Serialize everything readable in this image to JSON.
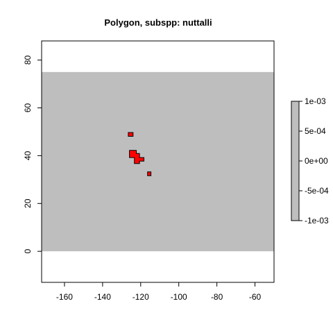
{
  "title": "Polygon, subspp: nuttalli",
  "map": {
    "x_range": [
      -172,
      -50
    ],
    "y_range": [
      -13,
      88
    ],
    "x_ticks": [
      -160,
      -140,
      -120,
      -100,
      -80,
      -60
    ],
    "y_ticks": [
      0,
      20,
      40,
      60,
      80
    ],
    "raster_extent": {
      "x": [
        -172,
        -50
      ],
      "y": [
        0,
        75
      ]
    },
    "raster_color": "#bebebe",
    "polygon_fill": "#ff0000",
    "polygon_stroke": "#000000",
    "polygons": [
      [
        [
          -126.5,
          48.1
        ],
        [
          -124.0,
          48.1
        ],
        [
          -124.0,
          49.7
        ],
        [
          -126.5,
          49.7
        ]
      ],
      [
        [
          -125.9,
          39.2
        ],
        [
          -123.3,
          39.2
        ],
        [
          -123.3,
          36.7
        ],
        [
          -120.6,
          36.7
        ],
        [
          -120.6,
          37.7
        ],
        [
          -118.3,
          37.7
        ],
        [
          -118.3,
          39.2
        ],
        [
          -120.6,
          39.2
        ],
        [
          -120.6,
          40.9
        ],
        [
          -122.3,
          40.9
        ],
        [
          -122.3,
          42.2
        ],
        [
          -125.9,
          42.2
        ]
      ],
      [
        [
          -116.4,
          31.6
        ],
        [
          -114.6,
          31.6
        ],
        [
          -114.6,
          33.2
        ],
        [
          -116.4,
          33.2
        ]
      ]
    ]
  },
  "legend": {
    "ticks": [
      "1e-03",
      "5e-04",
      "0e+00",
      "-5e-04",
      "-1e-03"
    ],
    "color": "#bebebe"
  }
}
